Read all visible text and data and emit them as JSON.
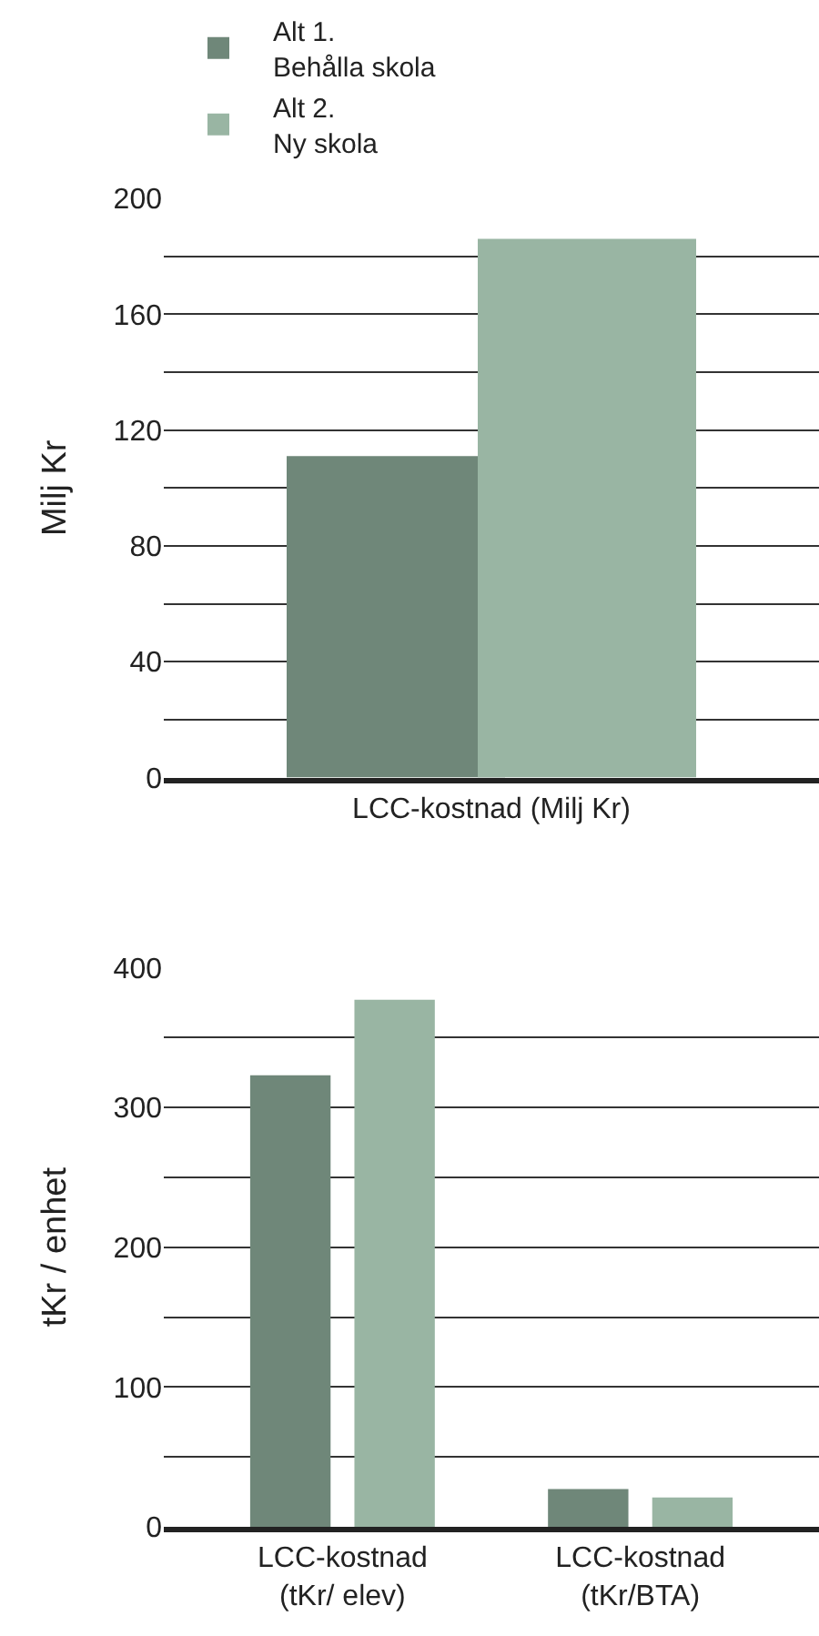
{
  "chart_data": [
    {
      "type": "bar",
      "ylabel": "Milj Kr",
      "categories": [
        "LCC-kostnad (Milj Kr)"
      ],
      "series": [
        {
          "name": "Alt 1.\nBehålla skola",
          "color": "#6f8779",
          "values": [
            111
          ]
        },
        {
          "name": "Alt 2.\nNy skola",
          "color": "#99b5a3",
          "values": [
            186
          ]
        }
      ],
      "ylim": [
        0,
        200
      ],
      "yticks": [
        0,
        {
          "value": 20,
          "label": null
        },
        40,
        {
          "value": 60,
          "label": null
        },
        80,
        {
          "value": 100,
          "label": null
        },
        120,
        {
          "value": 140,
          "label": null
        },
        160,
        {
          "value": 180,
          "label": null
        },
        200
      ],
      "grid": "y",
      "legend": "top"
    },
    {
      "type": "bar",
      "ylabel": "tKr / enhet",
      "categories": [
        "LCC-kostnad\n(tKr/ elev)",
        "LCC-kostnad\n(tKr/BTA)"
      ],
      "series": [
        {
          "color": "#6f8779",
          "values": [
            323,
            27
          ]
        },
        {
          "color": "#99b5a3",
          "values": [
            377,
            21
          ]
        }
      ],
      "ylim": [
        0,
        400
      ],
      "yticks": [
        0,
        {
          "value": 50,
          "label": null
        },
        100,
        {
          "value": 150,
          "label": null
        },
        200,
        {
          "value": 250,
          "label": null
        },
        300,
        {
          "value": 350,
          "label": null
        },
        400
      ],
      "grid": "y"
    }
  ]
}
